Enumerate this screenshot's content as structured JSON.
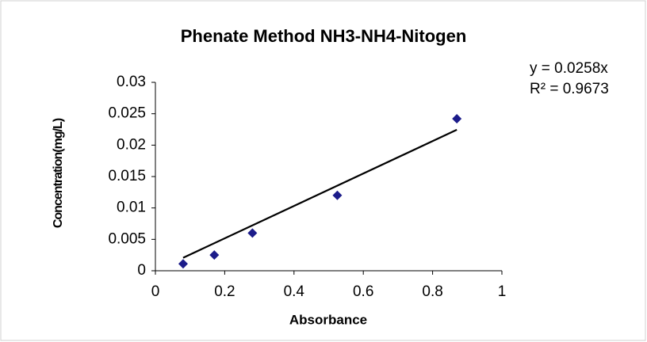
{
  "chart_data": {
    "type": "scatter",
    "title": "Phenate Method NH3-NH4-Nitogen",
    "x_label": "Absorbance",
    "y_label": "Concentration(mg/L)",
    "annotations": [
      "y = 0.0258x",
      "R² = 0.9673"
    ],
    "series": [
      {
        "name": "Concentration",
        "color": "#1c1c8a",
        "x": [
          0.08,
          0.17,
          0.28,
          0.525,
          0.87
        ],
        "values": [
          0.0011,
          0.0025,
          0.006,
          0.012,
          0.0242
        ]
      }
    ],
    "trendline_slope": 0.0258,
    "xlim": [
      0,
      1
    ],
    "xticks": [
      0,
      0.2,
      0.4,
      0.6,
      0.8,
      1
    ],
    "ylim": [
      0,
      0.03
    ],
    "yticks": [
      0,
      0.005,
      0.01,
      0.015,
      0.02,
      0.025,
      0.03
    ],
    "grid": false
  }
}
